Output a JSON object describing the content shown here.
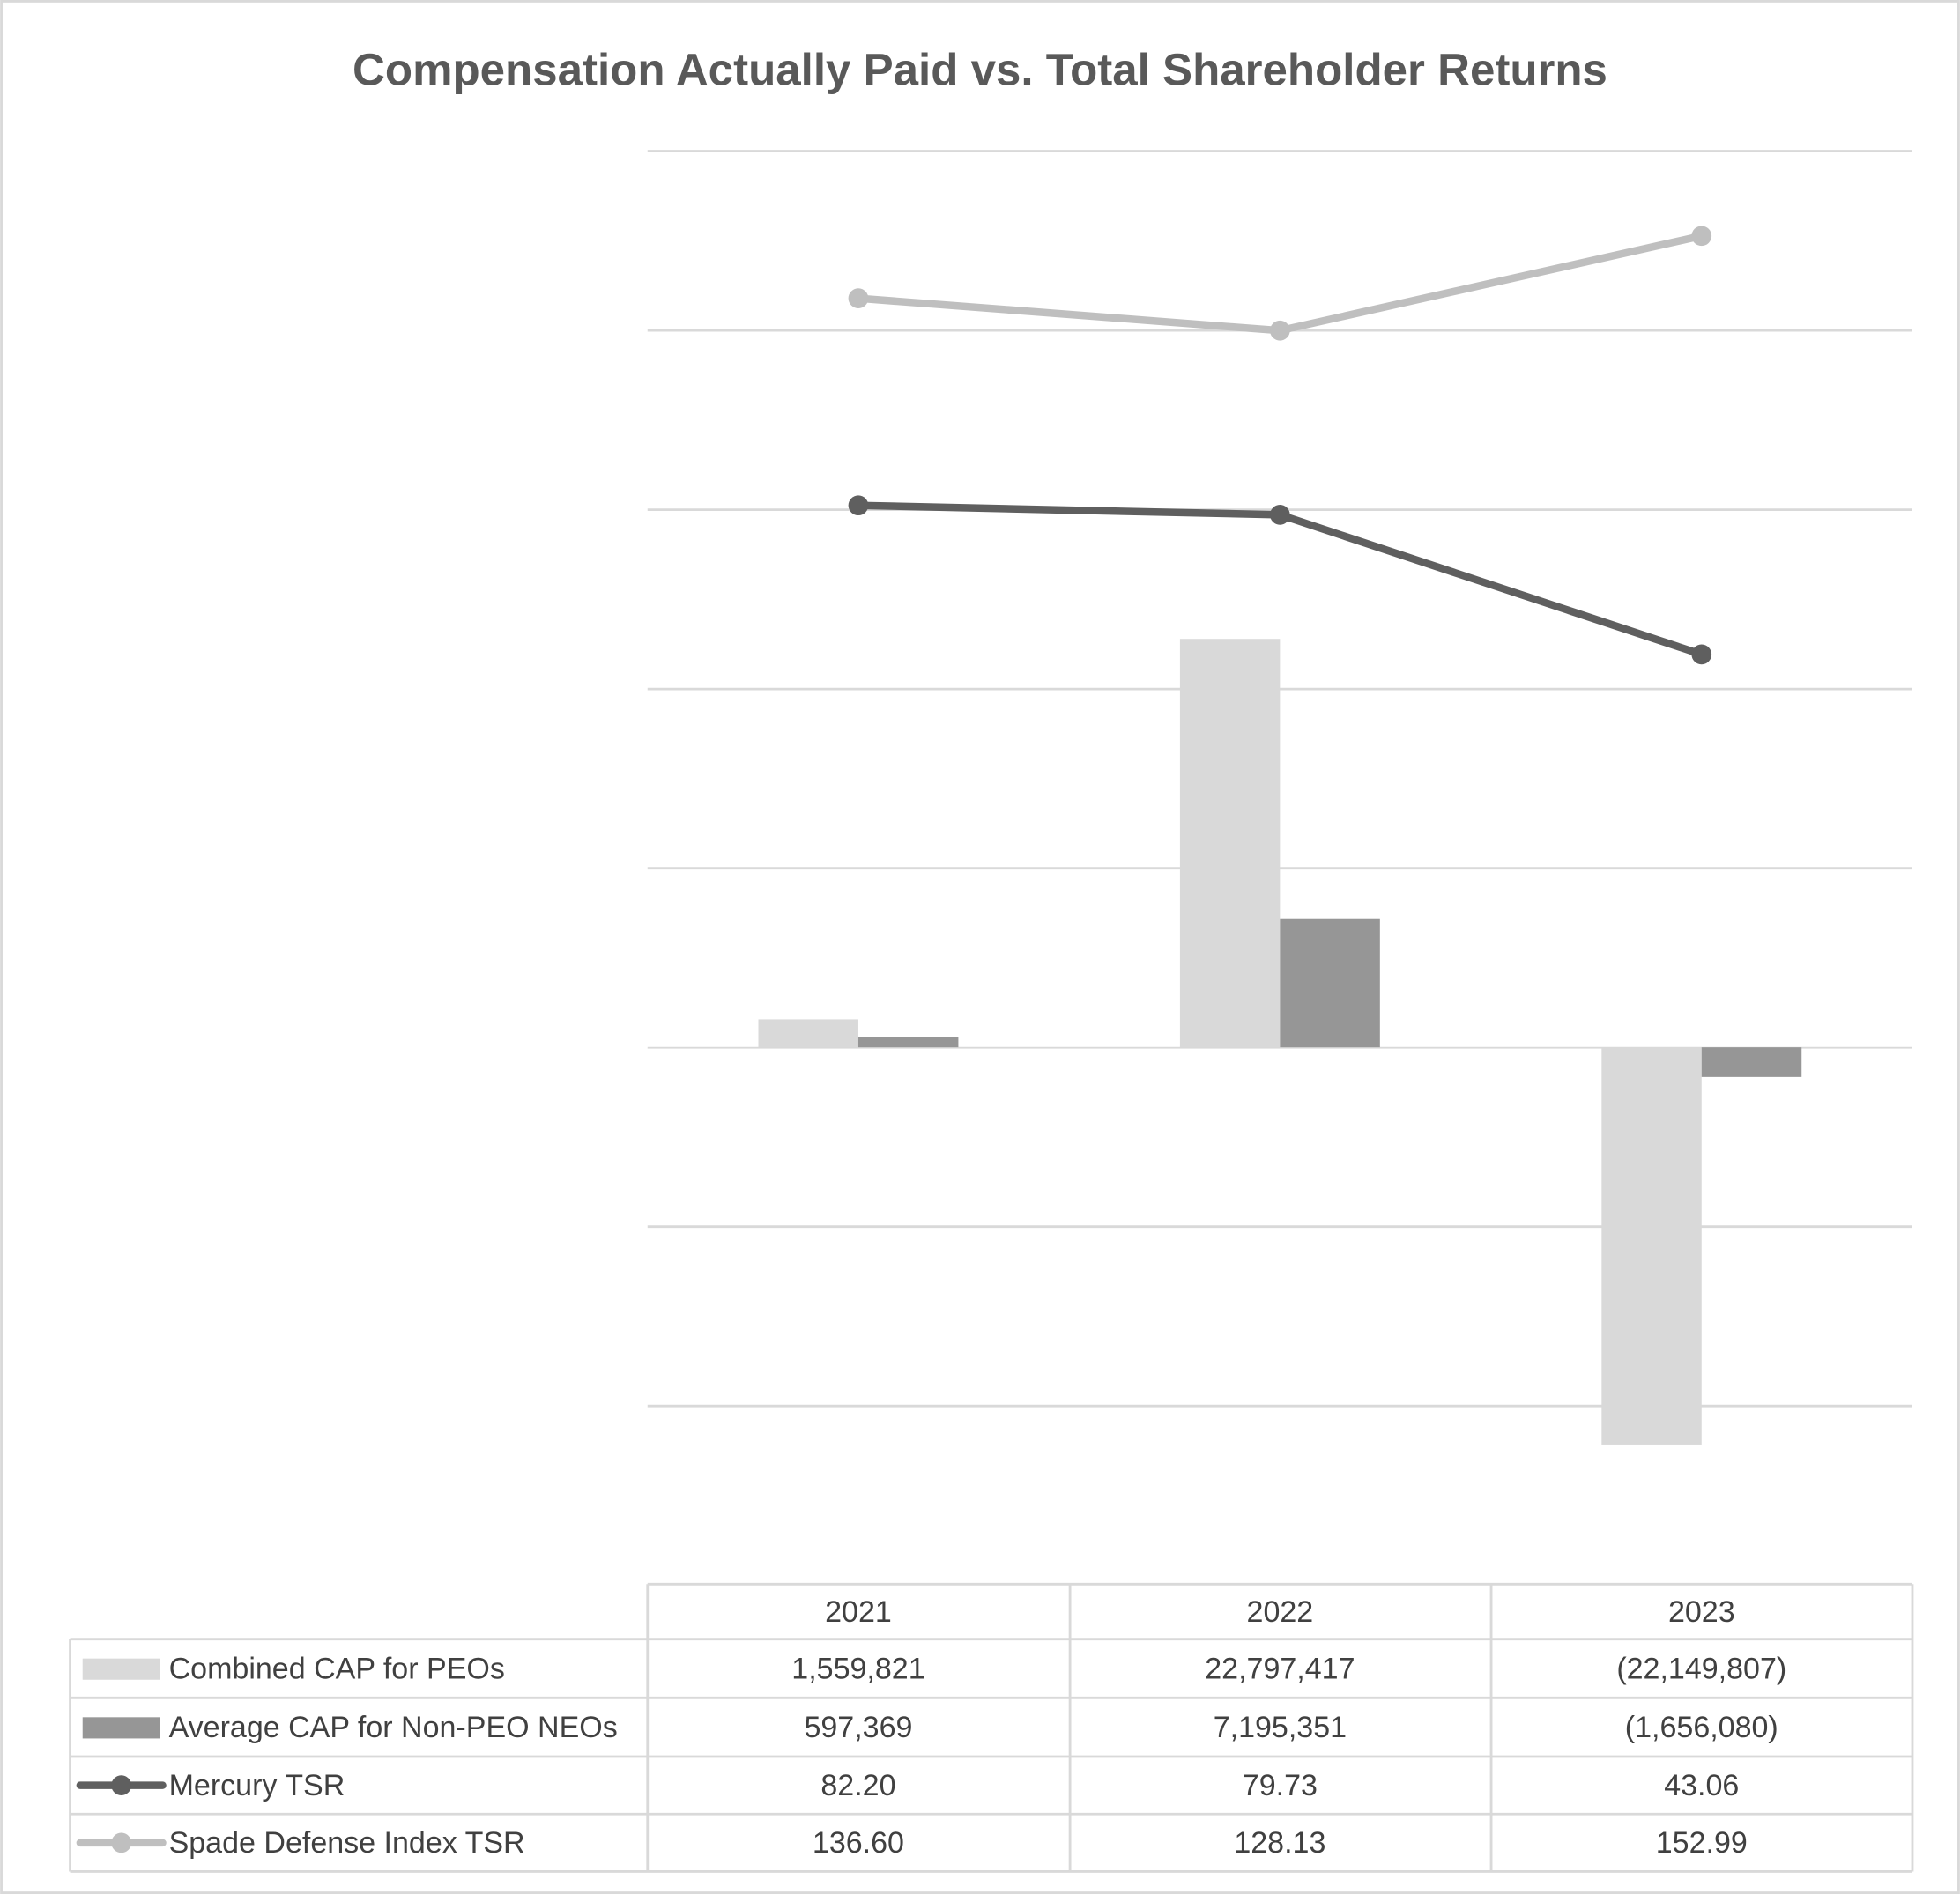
{
  "chart_data": {
    "type": "bar",
    "title": "Compensation Actually Paid vs. Total Shareholder Returns",
    "categories": [
      "2021",
      "2022",
      "2023"
    ],
    "grid": true,
    "legend_placement": "bottom data table",
    "primary_axis_range": [
      -30000000,
      50000000
    ],
    "series": [
      {
        "name": "Combined CAP for PEOs",
        "kind": "bar",
        "color": "#d9d9d9",
        "values": [
          1559821,
          22797417,
          -22149807
        ],
        "labels": [
          "1,559,821",
          "22,797,417",
          "(22,149,807)"
        ]
      },
      {
        "name": "Average CAP for Non-PEO NEOs",
        "kind": "bar",
        "color": "#969696",
        "values": [
          597369,
          7195351,
          -1656080
        ],
        "labels": [
          "597,369",
          "7,195,351",
          "(1,656,080)"
        ]
      },
      {
        "name": "Mercury TSR",
        "kind": "line",
        "color": "#5f5f5f",
        "axis": "secondary",
        "values": [
          82.2,
          79.73,
          43.06
        ],
        "labels": [
          "82.20",
          "79.73",
          "43.06"
        ]
      },
      {
        "name": "Spade Defense Index TSR",
        "kind": "line",
        "color": "#bfbfbf",
        "axis": "secondary",
        "values": [
          136.6,
          128.13,
          152.99
        ],
        "labels": [
          "136.60",
          "128.13",
          "152.99"
        ]
      }
    ]
  }
}
